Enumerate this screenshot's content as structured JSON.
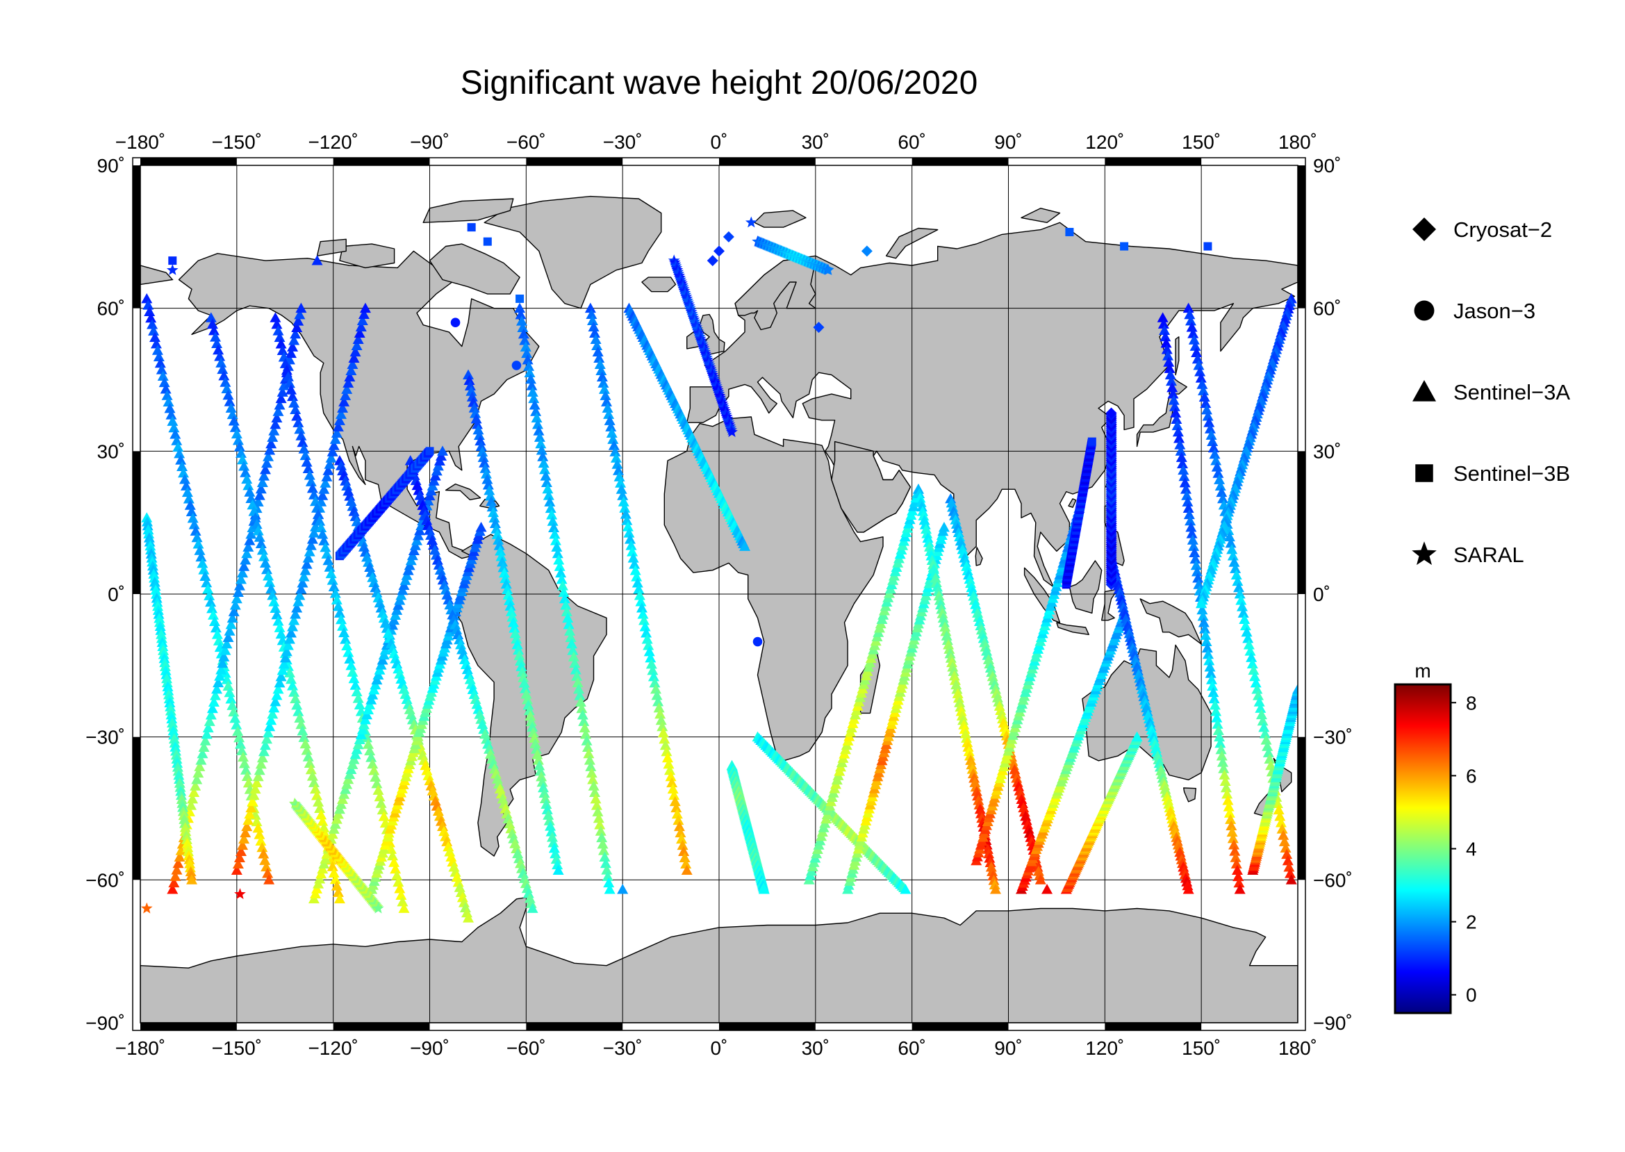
{
  "title": "Significant wave height 20/06/2020",
  "axes": {
    "lon_ticks": [
      "−180˚",
      "−150˚",
      "−120˚",
      "−90˚",
      "−60˚",
      "−30˚",
      "0˚",
      "30˚",
      "60˚",
      "90˚",
      "120˚",
      "150˚",
      "180˚"
    ],
    "lat_ticks": [
      "90˚",
      "60˚",
      "30˚",
      "0˚",
      "−30˚",
      "−60˚",
      "−90˚"
    ],
    "lon_range": [
      -180,
      180
    ],
    "lat_range": [
      -90,
      90
    ],
    "grid": true
  },
  "legend": {
    "placement": "right",
    "items": [
      {
        "symbol": "diamond",
        "label": "Cryosat−2"
      },
      {
        "symbol": "circle",
        "label": "Jason−3"
      },
      {
        "symbol": "triangle",
        "label": "Sentinel−3A"
      },
      {
        "symbol": "square",
        "label": "Sentinel−3B"
      },
      {
        "symbol": "star",
        "label": "SARAL"
      }
    ]
  },
  "colorbar": {
    "unit": "m",
    "min": -0.5,
    "max": 8.5,
    "ticks": [
      "8",
      "6",
      "4",
      "2",
      "0"
    ],
    "tick_values": [
      8,
      6,
      4,
      2,
      0
    ],
    "colors": [
      "#00007f",
      "#0000ff",
      "#007fff",
      "#00ffff",
      "#7fff7f",
      "#ffff00",
      "#ff7f00",
      "#ff0000",
      "#7f0000"
    ]
  },
  "colors": {
    "land": "#bebebe",
    "ocean": "#ffffff",
    "frame": "#000000"
  },
  "chart_data": {
    "type": "scatter",
    "xlabel": "",
    "ylabel": "",
    "xlim": [
      -180,
      180
    ],
    "ylim": [
      -90,
      90
    ],
    "series": [
      {
        "name": "Cryosat−2",
        "symbol": "diamond",
        "points": [
          [
            -2,
            70,
            1.0
          ],
          [
            0,
            72,
            1.0
          ],
          [
            3,
            75,
            1.2
          ],
          [
            46,
            72,
            1.8
          ],
          [
            31,
            56,
            1.2
          ]
        ]
      },
      {
        "name": "Jason−3",
        "symbol": "circle",
        "points": [
          [
            12,
            -10,
            1.0
          ],
          [
            -63,
            48,
            1.2
          ],
          [
            -82,
            57,
            0.8
          ]
        ]
      },
      {
        "name": "Sentinel−3A",
        "symbol": "triangle",
        "points": [
          [
            102,
            -62,
            7.5
          ],
          [
            -125,
            70,
            1.0
          ],
          [
            -30,
            -62,
            2.0
          ]
        ]
      },
      {
        "name": "Sentinel−3B",
        "symbol": "square",
        "points": [
          [
            -77,
            77,
            1.2
          ],
          [
            -72,
            74,
            1.3
          ],
          [
            109,
            76,
            1.4
          ],
          [
            126,
            73,
            1.4
          ],
          [
            152,
            73,
            1.2
          ],
          [
            -170,
            70,
            1.0
          ],
          [
            -62,
            62,
            1.5
          ]
        ]
      },
      {
        "name": "SARAL",
        "symbol": "star",
        "points": [
          [
            -149,
            -63,
            7.5
          ],
          [
            -178,
            -66,
            6.5
          ],
          [
            10,
            78,
            1.2
          ],
          [
            -170,
            68,
            1.0
          ]
        ]
      }
    ],
    "tracks": [
      {
        "symbol": "triangle",
        "lon1": -178,
        "lat1": 62,
        "lon2": -140,
        "lat2": -60,
        "h": [
          0.9,
          1.5,
          2.0,
          1.8,
          2.5,
          3.0,
          3.5,
          4.5,
          6.5
        ]
      },
      {
        "symbol": "triangle",
        "lon1": -170,
        "lat1": -62,
        "lon2": -130,
        "lat2": 60,
        "h": [
          7.0,
          5.0,
          3.5,
          2.5,
          2.0,
          1.8,
          1.5,
          1.2,
          1.0
        ]
      },
      {
        "symbol": "triangle",
        "lon1": -158,
        "lat1": 58,
        "lon2": -118,
        "lat2": -64,
        "h": [
          1.0,
          1.5,
          2.0,
          2.0,
          2.5,
          3.2,
          4.0,
          5.0,
          5.5
        ]
      },
      {
        "symbol": "triangle",
        "lon1": -150,
        "lat1": -58,
        "lon2": -110,
        "lat2": 60,
        "h": [
          7.0,
          5.0,
          3.0,
          2.5,
          2.0,
          1.8,
          1.5,
          1.2,
          1.0
        ]
      },
      {
        "symbol": "triangle",
        "lon1": -138,
        "lat1": 58,
        "lon2": -98,
        "lat2": -66,
        "h": [
          1.0,
          1.2,
          1.5,
          2.0,
          2.5,
          3.0,
          4.0,
          5.0,
          5.0
        ]
      },
      {
        "symbol": "triangle",
        "lon1": -126,
        "lat1": -64,
        "lon2": -86,
        "lat2": 30,
        "h": [
          5.0,
          4.5,
          4.0,
          3.0,
          2.5,
          2.0,
          1.8,
          1.5,
          1.2
        ]
      },
      {
        "symbol": "triangle",
        "lon1": -118,
        "lat1": 28,
        "lon2": -78,
        "lat2": -68,
        "h": [
          1.0,
          1.5,
          2.0,
          2.5,
          3.0,
          4.5,
          6.0,
          5.0,
          4.5
        ]
      },
      {
        "symbol": "triangle",
        "lon1": -108,
        "lat1": -62,
        "lon2": -74,
        "lat2": 14,
        "h": [
          4.0,
          5.0,
          5.5,
          4.5,
          3.5,
          2.5,
          2.0,
          1.5,
          1.2
        ]
      },
      {
        "symbol": "triangle",
        "lon1": -96,
        "lat1": 28,
        "lon2": -58,
        "lat2": -66,
        "h": [
          0.8,
          1.0,
          1.5,
          2.0,
          3.0,
          3.5,
          4.5,
          4.0,
          3.5
        ]
      },
      {
        "symbol": "triangle",
        "lon1": -78,
        "lat1": 46,
        "lon2": -50,
        "lat2": -58,
        "h": [
          1.2,
          1.5,
          2.0,
          2.5,
          3.0,
          3.5,
          4.0,
          3.5,
          3.0
        ]
      },
      {
        "symbol": "triangle",
        "lon1": -62,
        "lat1": 60,
        "lon2": -34,
        "lat2": -62,
        "h": [
          1.5,
          1.8,
          2.0,
          2.5,
          3.0,
          3.5,
          4.0,
          4.5,
          3.0
        ]
      },
      {
        "symbol": "triangle",
        "lon1": -40,
        "lat1": 60,
        "lon2": -10,
        "lat2": -58,
        "h": [
          1.5,
          1.8,
          2.0,
          2.5,
          2.8,
          3.0,
          4.5,
          5.5,
          6.0
        ]
      },
      {
        "symbol": "triangle",
        "lon1": -28,
        "lat1": 60,
        "lon2": 8,
        "lat2": 10,
        "h": [
          1.5,
          1.8,
          2.0,
          2.0,
          2.2,
          2.5,
          2.8,
          3.0,
          2.0
        ]
      },
      {
        "symbol": "triangle",
        "lon1": 4,
        "lat1": -36,
        "lon2": 14,
        "lat2": -62,
        "h": [
          3.0,
          3.5,
          4.0,
          3.5,
          3.0,
          3.2,
          3.5,
          3.0,
          2.8
        ]
      },
      {
        "symbol": "triangle",
        "lon1": 12,
        "lat1": -30,
        "lon2": 58,
        "lat2": -62,
        "h": [
          2.8,
          3.0,
          3.5,
          3.5,
          4.0,
          4.5,
          4.0,
          3.5,
          3.0
        ]
      },
      {
        "symbol": "triangle",
        "lon1": 28,
        "lat1": -60,
        "lon2": 62,
        "lat2": 22,
        "h": [
          3.5,
          4.0,
          4.5,
          5.0,
          4.5,
          4.0,
          3.5,
          3.0,
          2.5
        ]
      },
      {
        "symbol": "triangle",
        "lon1": 40,
        "lat1": -62,
        "lon2": 70,
        "lat2": 14,
        "h": [
          3.5,
          4.5,
          5.5,
          6.5,
          5.0,
          4.0,
          3.5,
          3.0,
          2.5
        ]
      },
      {
        "symbol": "triangle",
        "lon1": 62,
        "lat1": 22,
        "lon2": 86,
        "lat2": -62,
        "h": [
          2.5,
          3.0,
          3.5,
          4.0,
          4.5,
          5.0,
          6.5,
          7.5,
          6.0
        ]
      },
      {
        "symbol": "triangle",
        "lon1": 72,
        "lat1": 20,
        "lon2": 100,
        "lat2": -60,
        "h": [
          2.0,
          2.5,
          3.0,
          3.5,
          4.0,
          5.5,
          7.0,
          7.5,
          6.5
        ]
      },
      {
        "symbol": "triangle",
        "lon1": 80,
        "lat1": -56,
        "lon2": 112,
        "lat2": 18,
        "h": [
          7.0,
          6.5,
          5.0,
          4.0,
          3.5,
          3.0,
          2.5,
          2.0,
          1.5
        ]
      },
      {
        "symbol": "triangle",
        "lon1": 94,
        "lat1": -62,
        "lon2": 126,
        "lat2": -4,
        "h": [
          7.5,
          6.5,
          5.5,
          4.5,
          3.5,
          3.0,
          2.5,
          2.2,
          2.0
        ]
      },
      {
        "symbol": "triangle",
        "lon1": 108,
        "lat1": -62,
        "lon2": 130,
        "lat2": -30,
        "h": [
          7.0,
          6.5,
          6.0,
          5.5,
          5.0,
          4.5,
          4.0,
          3.5,
          3.2
        ]
      },
      {
        "symbol": "triangle",
        "lon1": 122,
        "lat1": 8,
        "lon2": 146,
        "lat2": -62,
        "h": [
          1.0,
          1.2,
          1.5,
          2.0,
          2.5,
          3.5,
          5.0,
          6.5,
          7.5
        ]
      },
      {
        "symbol": "triangle",
        "lon1": 138,
        "lat1": 58,
        "lon2": 162,
        "lat2": -62,
        "h": [
          0.8,
          1.0,
          1.2,
          1.5,
          2.0,
          2.5,
          3.5,
          5.5,
          7.5
        ]
      },
      {
        "symbol": "triangle",
        "lon1": 146,
        "lat1": 60,
        "lon2": 178,
        "lat2": -60,
        "h": [
          1.0,
          1.2,
          1.5,
          2.0,
          2.5,
          3.0,
          3.5,
          5.0,
          7.5
        ]
      },
      {
        "symbol": "triangle",
        "lon1": 178,
        "lat1": 62,
        "lon2": 150,
        "lat2": -2,
        "h": [
          1.0,
          1.2,
          1.5,
          1.5,
          1.8,
          2.0,
          2.2,
          2.5,
          2.5
        ]
      },
      {
        "symbol": "triangle",
        "lon1": 166,
        "lat1": -58,
        "lon2": 180,
        "lat2": -20,
        "h": [
          7.5,
          6.0,
          5.0,
          4.0,
          3.5,
          3.0,
          2.8,
          2.5,
          2.2
        ]
      },
      {
        "symbol": "triangle",
        "lon1": -178,
        "lat1": 16,
        "lon2": -164,
        "lat2": -60,
        "h": [
          2.5,
          2.5,
          2.8,
          3.0,
          3.0,
          3.2,
          3.5,
          4.5,
          6.0
        ]
      },
      {
        "symbol": "star",
        "lon1": -14,
        "lat1": 70,
        "lon2": 4,
        "lat2": 34,
        "h": [
          1.0,
          1.0,
          1.2,
          1.2,
          1.0,
          1.0,
          0.8,
          0.8,
          1.0
        ]
      },
      {
        "symbol": "star",
        "lon1": 12,
        "lat1": 74,
        "lon2": 34,
        "lat2": 68,
        "h": [
          1.5,
          1.8,
          2.0,
          2.2,
          2.5,
          2.5,
          2.2,
          2.0,
          1.8
        ]
      },
      {
        "symbol": "square",
        "lon1": -118,
        "lat1": 8,
        "lon2": -90,
        "lat2": 30,
        "h": [
          1.2,
          1.0,
          1.0,
          0.8,
          0.8,
          1.0,
          1.0,
          1.2,
          1.0
        ]
      },
      {
        "symbol": "square",
        "lon1": 108,
        "lat1": 2,
        "lon2": 116,
        "lat2": 32,
        "h": [
          0.6,
          0.6,
          0.8,
          0.8,
          1.0,
          0.8,
          0.6,
          0.6,
          0.8
        ]
      },
      {
        "symbol": "diamond",
        "lon1": 122,
        "lat1": 2,
        "lon2": 122,
        "lat2": 38,
        "h": [
          0.8,
          0.6,
          0.6,
          0.8,
          1.0,
          1.0,
          0.8,
          0.8,
          0.6
        ]
      },
      {
        "symbol": "star",
        "lon1": -132,
        "lat1": -44,
        "lon2": -106,
        "lat2": -66,
        "h": [
          4.0,
          4.5,
          5.0,
          5.5,
          5.5,
          5.0,
          4.5,
          4.5,
          4.0
        ]
      }
    ]
  }
}
